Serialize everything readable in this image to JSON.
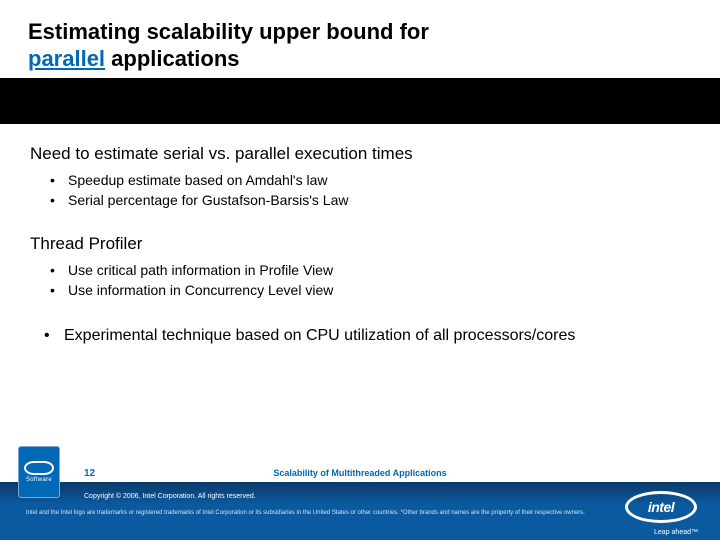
{
  "title": {
    "line1": "Estimating scalability upper bound for",
    "accent": "parallel",
    "rest": " applications"
  },
  "content": {
    "section1": {
      "heading": "Need to estimate serial vs. parallel execution times",
      "bullets": [
        "Speedup estimate based on Amdahl's law",
        "Serial percentage for Gustafson-Barsis's Law"
      ]
    },
    "section2": {
      "heading": "Thread Profiler",
      "bullets": [
        "Use critical path information in Profile View",
        "Use information in Concurrency Level view"
      ]
    },
    "top_bullet": "Experimental technique based on CPU utilization of all processors/cores"
  },
  "footer": {
    "topline": "Scalability of Multithreaded Applications",
    "page": "12",
    "badge_text": "Software",
    "copyright": "Copyright © 2006, Intel Corporation. All rights reserved.",
    "legal": "Intel and the Intel logo are trademarks or registered trademarks of Intel Corporation or its subsidiaries in the United States or other countries. *Other brands and names are the property of their respective owners.",
    "logo_text": "intel",
    "leap": "Leap ahead™"
  },
  "colors": {
    "accent_blue": "#0068b5",
    "footer_dark": "#0a3a6a",
    "footer_light": "#0b5aa0",
    "white": "#ffffff",
    "black": "#000000"
  },
  "typography": {
    "title_size": 22,
    "heading_size": 17,
    "bullet_size": 14,
    "top_bullet_size": 16,
    "footer_topline_size": 9,
    "legal_size": 6
  }
}
